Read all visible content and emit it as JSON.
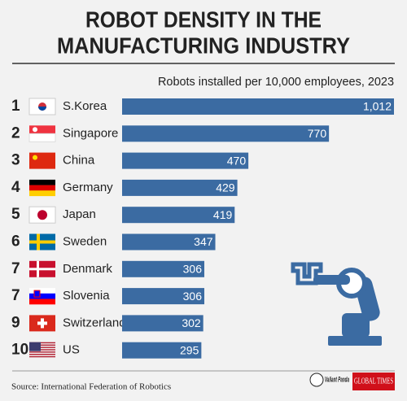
{
  "chart_data": {
    "type": "bar",
    "orientation": "horizontal",
    "title": [
      "ROBOT DENSITY IN THE",
      "MANUFACTURING INDUSTRY"
    ],
    "subtitle": "Robots installed per 10,000 employees, 2023",
    "ranks": [
      1,
      2,
      3,
      4,
      5,
      6,
      7,
      7,
      9,
      10
    ],
    "categories": [
      "S.Korea",
      "Singapore",
      "China",
      "Germany",
      "Japan",
      "Sweden",
      "Denmark",
      "Slovenia",
      "Switzerland",
      "US"
    ],
    "values": [
      1012,
      770,
      470,
      429,
      419,
      347,
      306,
      306,
      302,
      295
    ],
    "value_labels": [
      "1,012",
      "770",
      "470",
      "429",
      "419",
      "347",
      "306",
      "306",
      "302",
      "295"
    ],
    "color": "#3b6ba2",
    "source": "Source: International Federation of Robotics",
    "logos": [
      "Valiant Panda",
      "GLOBAL TIMES"
    ]
  }
}
